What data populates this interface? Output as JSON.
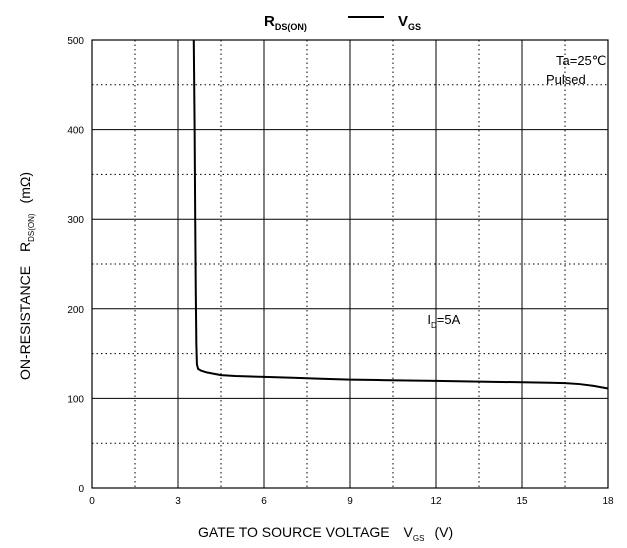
{
  "chart_data": {
    "type": "line",
    "title": {
      "left_main": "R",
      "left_sub": "DS(ON)",
      "right_main": "V",
      "right_sub": "GS"
    },
    "xlabel": {
      "main": "GATE TO SOURCE VOLTAGE",
      "symbol": "V",
      "symbol_sub": "GS",
      "unit": "(V)"
    },
    "ylabel": {
      "main": "ON-RESISTANCE",
      "symbol": "R",
      "symbol_sub": "DS(ON)",
      "unit": "(mΩ)"
    },
    "xlim": [
      0,
      18
    ],
    "ylim": [
      0,
      500
    ],
    "xticks": [
      0,
      3,
      6,
      9,
      12,
      15,
      18
    ],
    "yticks": [
      0,
      100,
      200,
      300,
      400,
      500
    ],
    "grid": {
      "major": "solid",
      "minor": "dotted",
      "x_minor_step": 1.5,
      "y_minor_step": 50
    },
    "conditions": [
      "Ta=25℃",
      "Pulsed"
    ],
    "annotation": {
      "main": "I",
      "sub": "D",
      "rest": "=5A",
      "x": 11.7,
      "y": 183
    },
    "series": [
      {
        "x": [
          3.55,
          3.58,
          3.6,
          3.62,
          3.64,
          3.66,
          3.7,
          3.8,
          4.0,
          4.5,
          5.0,
          6.0,
          7.0,
          8.0,
          9.0,
          10.0,
          11.0,
          12.0,
          13.0,
          14.0,
          15.0,
          16.0,
          16.5,
          17.0,
          17.5,
          18.0
        ],
        "y": [
          500,
          400,
          300,
          220,
          160,
          138,
          133,
          131,
          129,
          126,
          125,
          124,
          123,
          122,
          121,
          120.5,
          120,
          119.5,
          119,
          118.5,
          118,
          117.5,
          117,
          116,
          114,
          111
        ]
      }
    ]
  }
}
